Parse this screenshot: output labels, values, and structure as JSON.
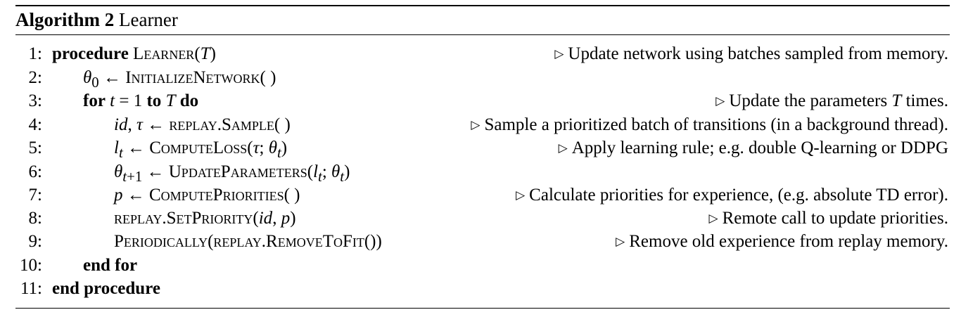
{
  "caption": {
    "label": "Algorithm 2",
    "title": "Learner"
  },
  "triangle_glyph": "▷",
  "lines": [
    {
      "num": "1:",
      "code": "<b>procedure</b> <span class=\"sc\">Learner</span>(<i>T</i>)",
      "comment": "Update network using batches sampled from memory."
    },
    {
      "num": "2:",
      "code": "<i>θ</i><sub>0</sub> ← <span class=\"sc\">InitializeNetwork</span>( )",
      "comment": ""
    },
    {
      "num": "3:",
      "code": "<b>for</b> <i>t</i> = 1 <b>to</b> <i>T</i> <b>do</b>",
      "comment": "Update the parameters <i>T</i> times."
    },
    {
      "num": "4:",
      "code": "<i>id</i>, <i>τ</i> ← <span class=\"sc\">replay.Sample</span>( )",
      "comment": "Sample a prioritized batch of transitions (in a background thread)."
    },
    {
      "num": "5:",
      "code": "<i>l<sub>t</sub></i> ← <span class=\"sc\">ComputeLoss</span>(<i>τ</i>; <i>θ<sub>t</sub></i>)",
      "comment": "Apply learning rule; e.g. double Q-learning or DDPG"
    },
    {
      "num": "6:",
      "code": "<i>θ</i><sub><i>t</i>+1</sub> ← <span class=\"sc\">UpdateParameters</span>(<i>l<sub>t</sub></i>; <i>θ<sub>t</sub></i>)",
      "comment": ""
    },
    {
      "num": "7:",
      "code": "<i>p</i> ← <span class=\"sc\">ComputePriorities</span>( )",
      "comment": "Calculate priorities for experience, (e.g. absolute TD error)."
    },
    {
      "num": "8:",
      "code": "<span class=\"sc\">replay.SetPriority</span>(<i>id</i>, <i>p</i>)",
      "comment": "Remote call to update priorities."
    },
    {
      "num": "9:",
      "code": "<span class=\"sc\">Periodically</span>(<span class=\"sc\">replay.RemoveToFit</span>())",
      "comment": "Remove old experience from replay memory."
    },
    {
      "num": "10:",
      "code": "<b>end for</b>",
      "comment": ""
    },
    {
      "num": "11:",
      "code": "<b>end procedure</b>",
      "comment": ""
    }
  ]
}
